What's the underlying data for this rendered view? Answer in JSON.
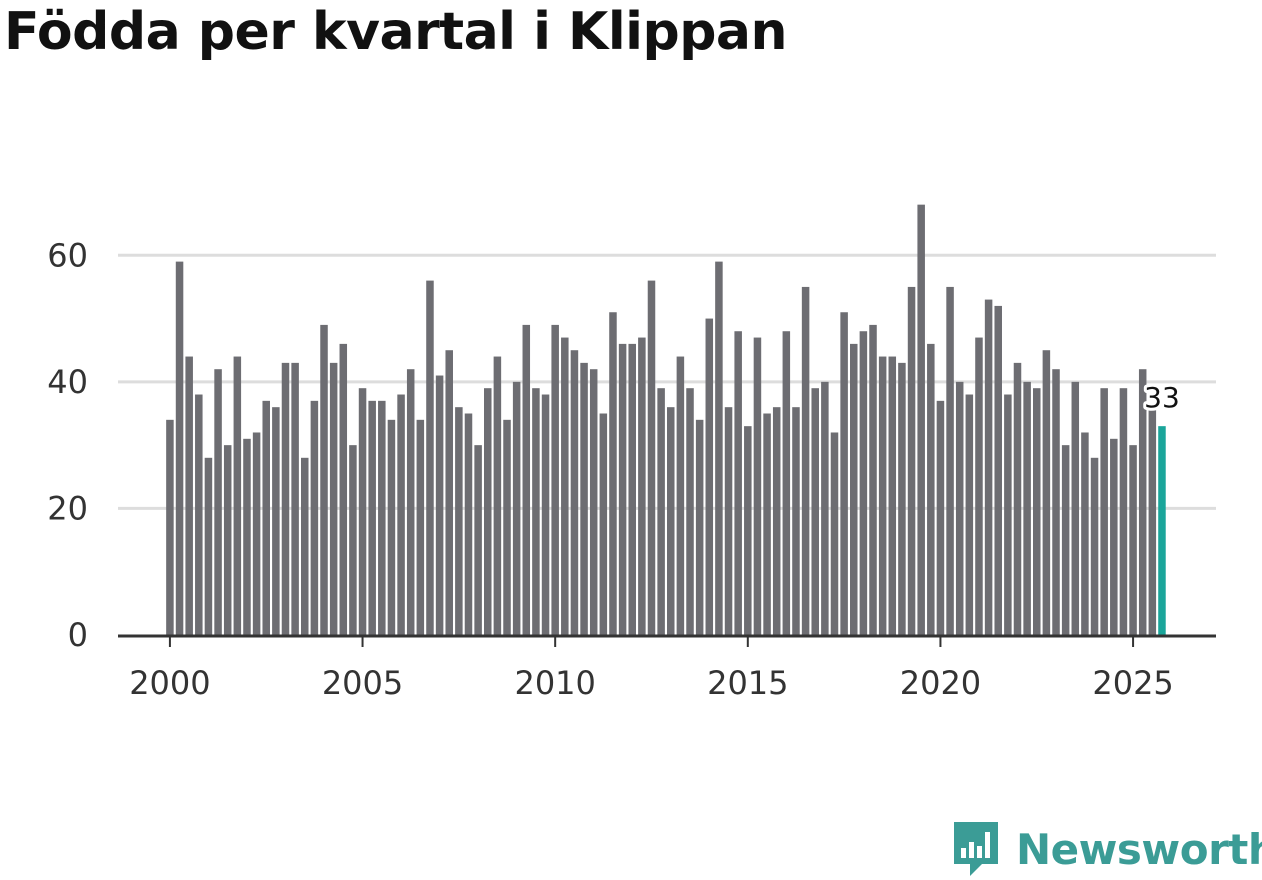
{
  "title": "Födda per kvartal i Klippan",
  "brand": {
    "name": "Newsworthy",
    "color": "#3b9c96",
    "icon": "newsworthy-logo-icon"
  },
  "colors": {
    "bar": "#6d6d72",
    "highlight": "#1aa59a",
    "grid": "#dddddd",
    "axis": "#333333"
  },
  "chart_data": {
    "type": "bar",
    "title": "Födda per kvartal i Klippan",
    "xlabel": "",
    "ylabel": "",
    "ylim": [
      0,
      70
    ],
    "yticks": [
      0,
      20,
      40,
      60
    ],
    "xticks": [
      2000,
      2005,
      2010,
      2015,
      2020,
      2025
    ],
    "x_range": [
      1998.75,
      2027.25
    ],
    "start_year": 2000,
    "grid": true,
    "legend": "none",
    "values": [
      34,
      59,
      44,
      38,
      28,
      42,
      30,
      44,
      31,
      32,
      37,
      36,
      43,
      43,
      28,
      37,
      49,
      43,
      46,
      30,
      39,
      37,
      37,
      34,
      38,
      42,
      34,
      56,
      41,
      45,
      36,
      35,
      30,
      39,
      44,
      34,
      40,
      49,
      39,
      38,
      49,
      47,
      45,
      43,
      42,
      35,
      51,
      46,
      46,
      47,
      56,
      39,
      36,
      44,
      39,
      34,
      50,
      59,
      36,
      48,
      33,
      47,
      35,
      36,
      48,
      36,
      55,
      39,
      40,
      32,
      51,
      46,
      48,
      49,
      44,
      44,
      43,
      55,
      68,
      46,
      37,
      55,
      40,
      38,
      47,
      53,
      52,
      38,
      43,
      40,
      39,
      45,
      42,
      30,
      40,
      32,
      28,
      39,
      31,
      39,
      30,
      42,
      36,
      33
    ],
    "highlight_index": 103,
    "annotation": {
      "index": 103,
      "text": "33"
    }
  }
}
